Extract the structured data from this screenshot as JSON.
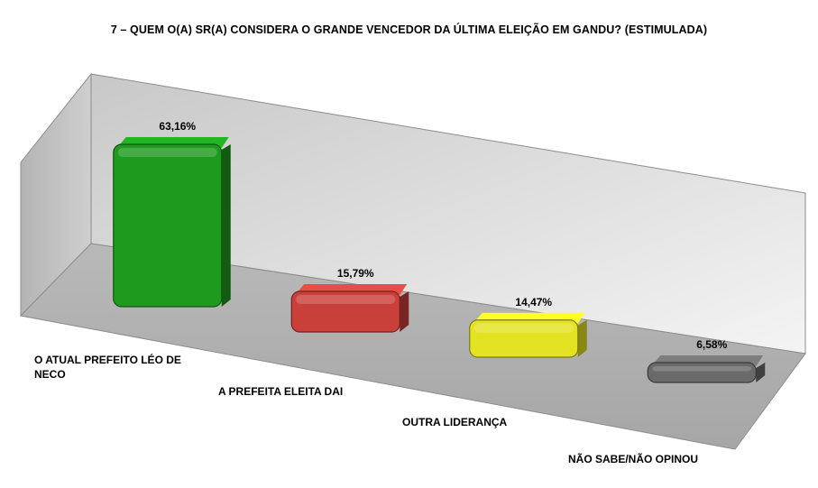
{
  "chart_data": {
    "type": "bar",
    "title": "7 – QUEM O(A) SR(A) CONSIDERA O GRANDE VENCEDOR DA ÚLTIMA ELEIÇÃO EM GANDU? (ESTIMULADA)",
    "categories": [
      "O ATUAL PREFEITO LÉO DE NECO",
      "A PREFEITA ELEITA DAI",
      "OUTRA LIDERANÇA",
      "NÃO SABE/NÃO OPINOU"
    ],
    "category_lines": [
      [
        "O ATUAL PREFEITO LÉO DE",
        "NECO"
      ],
      [
        "A PREFEITA ELEITA DAI"
      ],
      [
        "OUTRA LIDERANÇA"
      ],
      [
        "NÃO SABE/NÃO OPINOU"
      ]
    ],
    "values": [
      63.16,
      15.79,
      14.47,
      6.58
    ],
    "value_labels": [
      "63,16%",
      "15,79%",
      "14,47%",
      "6,58%"
    ],
    "colors": [
      "#1e9a1e",
      "#c9403a",
      "#e3e324",
      "#6a6a6a"
    ],
    "grid": false,
    "legend": "none",
    "style": "3d"
  }
}
